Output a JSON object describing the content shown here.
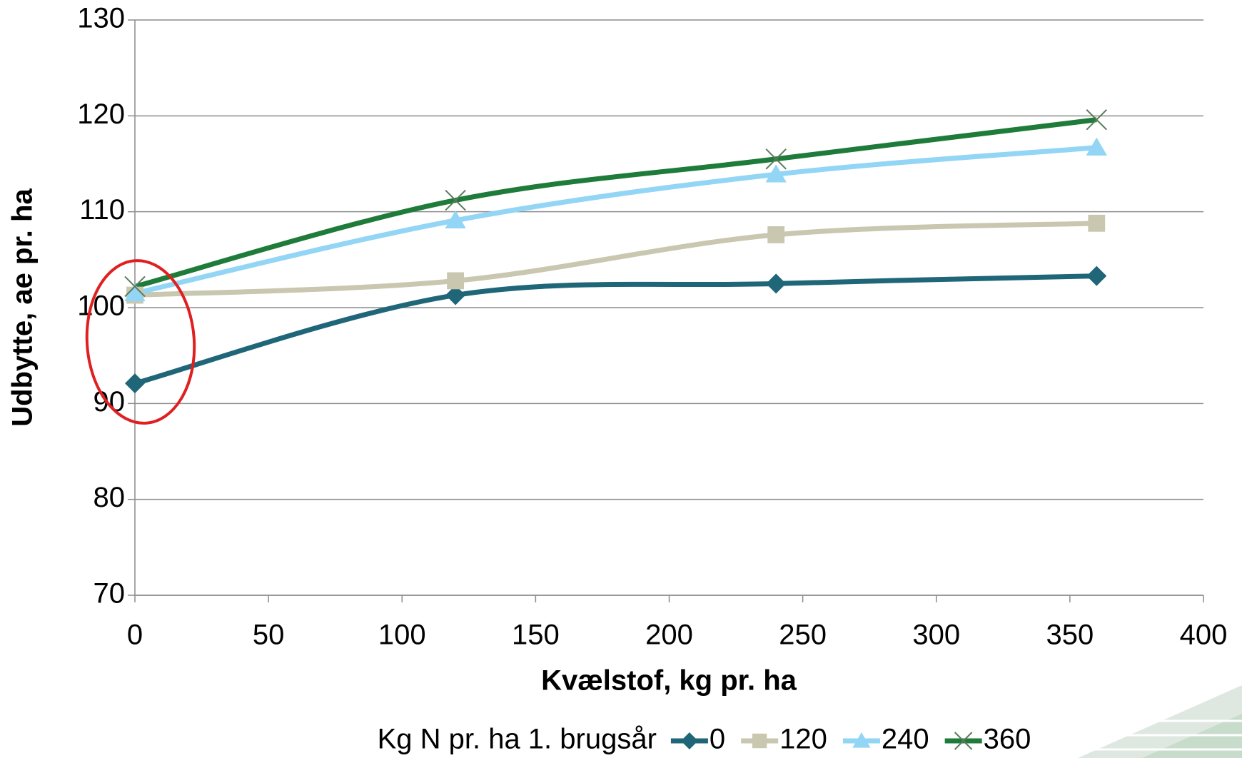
{
  "chart_data": {
    "type": "line",
    "x_label": "Kvælstof, kg pr. ha",
    "y_label": "Udbytte, ae pr. ha",
    "legend_title": "Kg N pr. ha 1. brugsår",
    "legend_position": "bottom",
    "x": [
      0,
      120,
      240,
      360
    ],
    "series": [
      {
        "name": "0",
        "color": "#1f6678",
        "marker": "diamond",
        "values": [
          92.1,
          101.3,
          102.5,
          103.3
        ]
      },
      {
        "name": "120",
        "color": "#c9c7b0",
        "marker": "square",
        "values": [
          101.3,
          102.8,
          107.6,
          108.8
        ]
      },
      {
        "name": "240",
        "color": "#92d5f5",
        "marker": "triangle",
        "values": [
          101.5,
          109.1,
          113.9,
          116.7
        ]
      },
      {
        "name": "360",
        "color": "#1e7b3a",
        "marker": "x",
        "values": [
          102.2,
          111.2,
          115.5,
          119.6
        ]
      }
    ],
    "xlim": [
      0,
      400
    ],
    "xticks": [
      0,
      50,
      100,
      150,
      200,
      250,
      300,
      350,
      400
    ],
    "ylim": [
      70,
      130
    ],
    "yticks": [
      70,
      80,
      90,
      100,
      110,
      120,
      130
    ],
    "grid": true,
    "smooth": true
  }
}
